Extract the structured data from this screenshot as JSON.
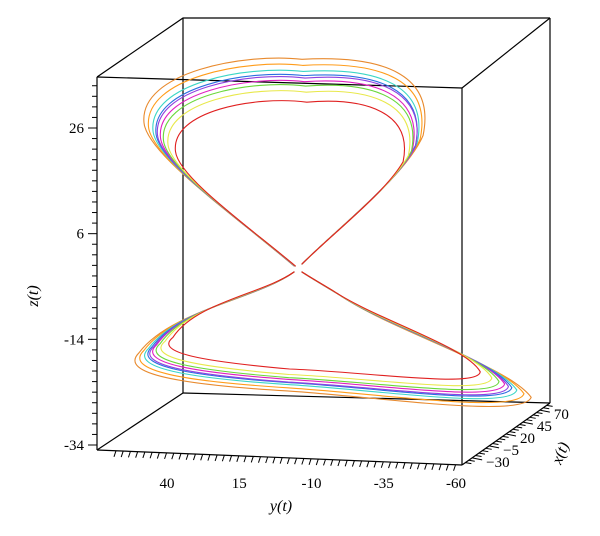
{
  "chart_data": {
    "type": "line",
    "projection": "3d",
    "title": "",
    "axes": {
      "x": {
        "label": "x(t)",
        "ticks": [
          70,
          45,
          20,
          -5,
          -30
        ],
        "range": [
          -45,
          85
        ]
      },
      "y": {
        "label": "y(t)",
        "ticks": [
          40,
          15,
          -10,
          -35,
          -60
        ],
        "range": [
          -60,
          60
        ]
      },
      "z": {
        "label": "z(t)",
        "ticks": [
          26,
          6,
          -14,
          -34
        ],
        "range": [
          -34,
          44
        ]
      }
    },
    "grid": false,
    "legend": "none",
    "series": [
      {
        "color": "#e88a2e",
        "loop_scale": 1.06,
        "loop_shift": 0.0
      },
      {
        "color": "#ff9c1a",
        "loop_scale": 1.03,
        "loop_shift": 0.6
      },
      {
        "color": "#3bd6c6",
        "loop_scale": 1.0,
        "loop_shift": 1.2
      },
      {
        "color": "#2a6fe0",
        "loop_scale": 0.98,
        "loop_shift": 1.8
      },
      {
        "color": "#e020c0",
        "loop_scale": 0.95,
        "loop_shift": 2.4
      },
      {
        "color": "#9040e0",
        "loop_scale": 0.97,
        "loop_shift": 3.0
      },
      {
        "color": "#6ad83a",
        "loop_scale": 0.93,
        "loop_shift": 3.6
      },
      {
        "color": "#e8e84a",
        "loop_scale": 0.9,
        "loop_shift": 4.2
      },
      {
        "color": "#e02020",
        "loop_scale": 0.85,
        "loop_shift": 4.8
      }
    ]
  }
}
